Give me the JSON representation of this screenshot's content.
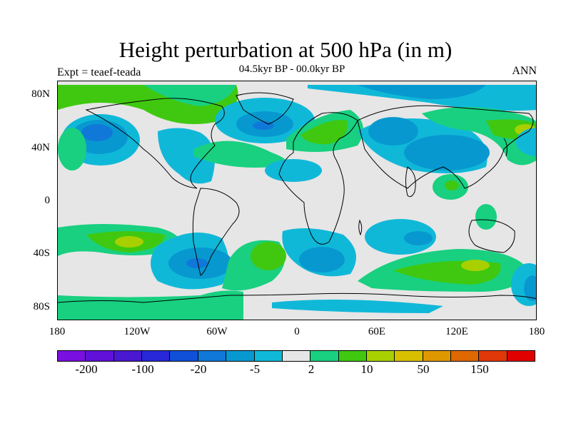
{
  "title": "Height perturbation at 500 hPa (in m)",
  "subtitle": "04.5kyr BP - 00.0kyr BP",
  "left_label": "Expt = teaef-teada",
  "right_label": "ANN",
  "y_ticks": [
    "80N",
    "40N",
    "0",
    "40S",
    "80S"
  ],
  "x_ticks": [
    "180",
    "120W",
    "60W",
    "0",
    "60E",
    "120E",
    "180"
  ],
  "colorbar": {
    "colors": [
      "#7a10e0",
      "#6010d8",
      "#4a18d0",
      "#2828d8",
      "#1050d8",
      "#1078d8",
      "#0898d0",
      "#10b8d8",
      "#e6e6e6",
      "#18d080",
      "#40c810",
      "#a8d000",
      "#d8c000",
      "#e09800",
      "#e06800",
      "#e03808",
      "#e00000"
    ],
    "labels": [
      "-200",
      "-100",
      "-20",
      "-5",
      "2",
      "10",
      "50",
      "150"
    ]
  },
  "palette": {
    "missing": "#e6e6e6",
    "coast": "#000000"
  }
}
